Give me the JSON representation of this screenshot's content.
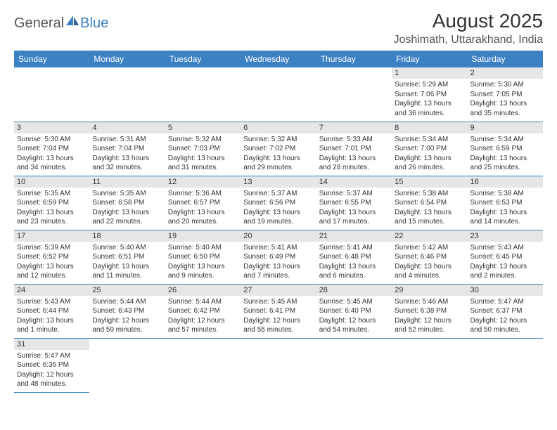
{
  "logo": {
    "general": "General",
    "blue": "Blue",
    "icon_color": "#3b81c3"
  },
  "title": "August 2025",
  "location": "Joshimath, Uttarakhand, India",
  "colors": {
    "header_bg": "#3b81c3",
    "header_text": "#ffffff",
    "daynum_bg": "#e6e6e6",
    "border": "#3b81c3",
    "text": "#333333",
    "logo_gray": "#555555"
  },
  "day_headers": [
    "Sunday",
    "Monday",
    "Tuesday",
    "Wednesday",
    "Thursday",
    "Friday",
    "Saturday"
  ],
  "weeks": [
    [
      null,
      null,
      null,
      null,
      null,
      {
        "n": "1",
        "sr": "Sunrise: 5:29 AM",
        "ss": "Sunset: 7:06 PM",
        "dl": "Daylight: 13 hours and 36 minutes."
      },
      {
        "n": "2",
        "sr": "Sunrise: 5:30 AM",
        "ss": "Sunset: 7:05 PM",
        "dl": "Daylight: 13 hours and 35 minutes."
      }
    ],
    [
      {
        "n": "3",
        "sr": "Sunrise: 5:30 AM",
        "ss": "Sunset: 7:04 PM",
        "dl": "Daylight: 13 hours and 34 minutes."
      },
      {
        "n": "4",
        "sr": "Sunrise: 5:31 AM",
        "ss": "Sunset: 7:04 PM",
        "dl": "Daylight: 13 hours and 32 minutes."
      },
      {
        "n": "5",
        "sr": "Sunrise: 5:32 AM",
        "ss": "Sunset: 7:03 PM",
        "dl": "Daylight: 13 hours and 31 minutes."
      },
      {
        "n": "6",
        "sr": "Sunrise: 5:32 AM",
        "ss": "Sunset: 7:02 PM",
        "dl": "Daylight: 13 hours and 29 minutes."
      },
      {
        "n": "7",
        "sr": "Sunrise: 5:33 AM",
        "ss": "Sunset: 7:01 PM",
        "dl": "Daylight: 13 hours and 28 minutes."
      },
      {
        "n": "8",
        "sr": "Sunrise: 5:34 AM",
        "ss": "Sunset: 7:00 PM",
        "dl": "Daylight: 13 hours and 26 minutes."
      },
      {
        "n": "9",
        "sr": "Sunrise: 5:34 AM",
        "ss": "Sunset: 6:59 PM",
        "dl": "Daylight: 13 hours and 25 minutes."
      }
    ],
    [
      {
        "n": "10",
        "sr": "Sunrise: 5:35 AM",
        "ss": "Sunset: 6:59 PM",
        "dl": "Daylight: 13 hours and 23 minutes."
      },
      {
        "n": "11",
        "sr": "Sunrise: 5:35 AM",
        "ss": "Sunset: 6:58 PM",
        "dl": "Daylight: 13 hours and 22 minutes."
      },
      {
        "n": "12",
        "sr": "Sunrise: 5:36 AM",
        "ss": "Sunset: 6:57 PM",
        "dl": "Daylight: 13 hours and 20 minutes."
      },
      {
        "n": "13",
        "sr": "Sunrise: 5:37 AM",
        "ss": "Sunset: 6:56 PM",
        "dl": "Daylight: 13 hours and 19 minutes."
      },
      {
        "n": "14",
        "sr": "Sunrise: 5:37 AM",
        "ss": "Sunset: 6:55 PM",
        "dl": "Daylight: 13 hours and 17 minutes."
      },
      {
        "n": "15",
        "sr": "Sunrise: 5:38 AM",
        "ss": "Sunset: 6:54 PM",
        "dl": "Daylight: 13 hours and 15 minutes."
      },
      {
        "n": "16",
        "sr": "Sunrise: 5:38 AM",
        "ss": "Sunset: 6:53 PM",
        "dl": "Daylight: 13 hours and 14 minutes."
      }
    ],
    [
      {
        "n": "17",
        "sr": "Sunrise: 5:39 AM",
        "ss": "Sunset: 6:52 PM",
        "dl": "Daylight: 13 hours and 12 minutes."
      },
      {
        "n": "18",
        "sr": "Sunrise: 5:40 AM",
        "ss": "Sunset: 6:51 PM",
        "dl": "Daylight: 13 hours and 11 minutes."
      },
      {
        "n": "19",
        "sr": "Sunrise: 5:40 AM",
        "ss": "Sunset: 6:50 PM",
        "dl": "Daylight: 13 hours and 9 minutes."
      },
      {
        "n": "20",
        "sr": "Sunrise: 5:41 AM",
        "ss": "Sunset: 6:49 PM",
        "dl": "Daylight: 13 hours and 7 minutes."
      },
      {
        "n": "21",
        "sr": "Sunrise: 5:41 AM",
        "ss": "Sunset: 6:48 PM",
        "dl": "Daylight: 13 hours and 6 minutes."
      },
      {
        "n": "22",
        "sr": "Sunrise: 5:42 AM",
        "ss": "Sunset: 6:46 PM",
        "dl": "Daylight: 13 hours and 4 minutes."
      },
      {
        "n": "23",
        "sr": "Sunrise: 5:43 AM",
        "ss": "Sunset: 6:45 PM",
        "dl": "Daylight: 13 hours and 2 minutes."
      }
    ],
    [
      {
        "n": "24",
        "sr": "Sunrise: 5:43 AM",
        "ss": "Sunset: 6:44 PM",
        "dl": "Daylight: 13 hours and 1 minute."
      },
      {
        "n": "25",
        "sr": "Sunrise: 5:44 AM",
        "ss": "Sunset: 6:43 PM",
        "dl": "Daylight: 12 hours and 59 minutes."
      },
      {
        "n": "26",
        "sr": "Sunrise: 5:44 AM",
        "ss": "Sunset: 6:42 PM",
        "dl": "Daylight: 12 hours and 57 minutes."
      },
      {
        "n": "27",
        "sr": "Sunrise: 5:45 AM",
        "ss": "Sunset: 6:41 PM",
        "dl": "Daylight: 12 hours and 55 minutes."
      },
      {
        "n": "28",
        "sr": "Sunrise: 5:45 AM",
        "ss": "Sunset: 6:40 PM",
        "dl": "Daylight: 12 hours and 54 minutes."
      },
      {
        "n": "29",
        "sr": "Sunrise: 5:46 AM",
        "ss": "Sunset: 6:38 PM",
        "dl": "Daylight: 12 hours and 52 minutes."
      },
      {
        "n": "30",
        "sr": "Sunrise: 5:47 AM",
        "ss": "Sunset: 6:37 PM",
        "dl": "Daylight: 12 hours and 50 minutes."
      }
    ],
    [
      {
        "n": "31",
        "sr": "Sunrise: 5:47 AM",
        "ss": "Sunset: 6:36 PM",
        "dl": "Daylight: 12 hours and 48 minutes."
      },
      null,
      null,
      null,
      null,
      null,
      null
    ]
  ]
}
